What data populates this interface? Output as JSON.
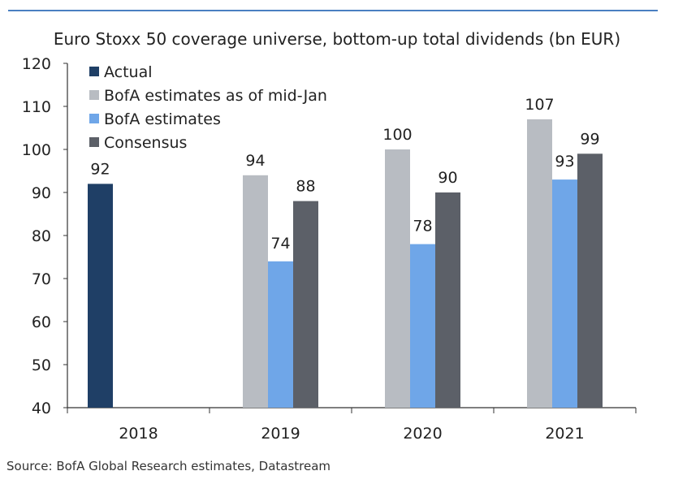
{
  "chart_data": {
    "type": "bar",
    "title": "Euro Stoxx 50 coverage universe, bottom-up total dividends (bn EUR)",
    "categories": [
      "2018",
      "2019",
      "2020",
      "2021"
    ],
    "series": [
      {
        "name": "Actual",
        "color": "#1f3f66",
        "values": [
          92,
          null,
          null,
          null
        ]
      },
      {
        "name": "BofA estimates as of mid-Jan",
        "color": "#b8bcc2",
        "values": [
          null,
          94,
          100,
          107
        ]
      },
      {
        "name": "BofA estimates",
        "color": "#6fa6e8",
        "values": [
          null,
          74,
          78,
          93
        ]
      },
      {
        "name": "Consensus",
        "color": "#5c6068",
        "values": [
          null,
          88,
          90,
          99
        ]
      }
    ],
    "ylim": [
      40,
      120
    ],
    "yticks": [
      40,
      50,
      60,
      70,
      80,
      90,
      100,
      110,
      120
    ],
    "grid": false,
    "legend": "top-left"
  },
  "source": "Source: BofA Global Research estimates, Datastream"
}
